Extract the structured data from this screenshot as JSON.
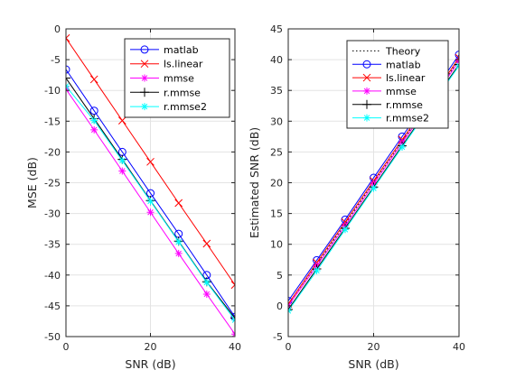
{
  "chart_data": [
    {
      "type": "line",
      "xlabel": "SNR (dB)",
      "ylabel": "MSE (dB)",
      "xlim": [
        0,
        40
      ],
      "ylim": [
        -50,
        0
      ],
      "xticks": [
        0,
        20,
        40
      ],
      "yticks": [
        -50,
        -45,
        -40,
        -35,
        -30,
        -25,
        -20,
        -15,
        -10,
        -5,
        0
      ],
      "grid": true,
      "legend_position": "top-right",
      "series": [
        {
          "name": "matlab",
          "color": "#0000ff",
          "marker": "circle",
          "x": [
            0,
            6.67,
            13.33,
            20,
            26.67,
            33.33,
            40
          ],
          "y": [
            -6.6,
            -13.3,
            -20.0,
            -26.7,
            -33.3,
            -40.0,
            -46.8
          ]
        },
        {
          "name": "ls.linear",
          "color": "#ff0000",
          "marker": "x",
          "x": [
            0,
            6.67,
            13.33,
            20,
            26.67,
            33.33,
            40
          ],
          "y": [
            -1.5,
            -8.2,
            -14.9,
            -21.6,
            -28.3,
            -34.9,
            -41.6
          ]
        },
        {
          "name": "mmse",
          "color": "#ff00ff",
          "marker": "star",
          "x": [
            0,
            6.67,
            13.33,
            20,
            26.67,
            33.33,
            40
          ],
          "y": [
            -9.8,
            -16.4,
            -23.1,
            -29.8,
            -36.5,
            -43.1,
            -49.6
          ]
        },
        {
          "name": "r.mmse",
          "color": "#000000",
          "marker": "plus",
          "x": [
            0,
            6.67,
            13.33,
            20,
            26.67,
            33.33,
            40
          ],
          "y": [
            -8.0,
            -14.6,
            -21.2,
            -27.9,
            -34.5,
            -41.1,
            -47.0
          ]
        },
        {
          "name": "r.mmse2",
          "color": "#00ffff",
          "marker": "star",
          "x": [
            0,
            6.67,
            13.33,
            20,
            26.67,
            33.33,
            40
          ],
          "y": [
            -9.3,
            -14.9,
            -21.4,
            -28.0,
            -34.6,
            -41.2,
            -47.3
          ]
        }
      ]
    },
    {
      "type": "line",
      "xlabel": "SNR (dB)",
      "ylabel": "Estimated SNR (dB)",
      "xlim": [
        0,
        40
      ],
      "ylim": [
        -5,
        45
      ],
      "xticks": [
        0,
        20,
        40
      ],
      "yticks": [
        -5,
        0,
        5,
        10,
        15,
        20,
        25,
        30,
        35,
        40,
        45
      ],
      "grid": true,
      "legend_position": "top-right",
      "series": [
        {
          "name": "Theory",
          "color": "#000000",
          "marker": "none",
          "dash": "dotted",
          "x": [
            0,
            40
          ],
          "y": [
            0,
            40
          ]
        },
        {
          "name": "matlab",
          "color": "#0000ff",
          "marker": "circle",
          "x": [
            0,
            6.67,
            13.33,
            20,
            26.67,
            33.33,
            40
          ],
          "y": [
            0.8,
            7.4,
            14.0,
            20.8,
            27.5,
            34.0,
            40.8
          ]
        },
        {
          "name": "ls.linear",
          "color": "#ff0000",
          "marker": "x",
          "x": [
            0,
            6.67,
            13.33,
            20,
            26.67,
            33.33,
            40
          ],
          "y": [
            0.3,
            7.0,
            13.6,
            20.3,
            27.0,
            33.5,
            40.3
          ]
        },
        {
          "name": "mmse",
          "color": "#ff00ff",
          "marker": "star",
          "x": [
            0,
            6.67,
            13.33,
            20,
            26.67,
            33.33,
            40
          ],
          "y": [
            0.0,
            6.5,
            13.0,
            19.8,
            26.5,
            33.0,
            39.8
          ]
        },
        {
          "name": "r.mmse",
          "color": "#000000",
          "marker": "plus",
          "x": [
            0,
            6.67,
            13.33,
            20,
            26.67,
            33.33,
            40
          ],
          "y": [
            -0.6,
            6.0,
            12.6,
            19.3,
            26.0,
            32.6,
            39.2
          ]
        },
        {
          "name": "r.mmse2",
          "color": "#00ffff",
          "marker": "star",
          "x": [
            0,
            6.67,
            13.33,
            20,
            26.67,
            33.33,
            40
          ],
          "y": [
            -0.8,
            5.7,
            12.4,
            19.1,
            25.8,
            32.4,
            39.0
          ]
        }
      ]
    }
  ]
}
